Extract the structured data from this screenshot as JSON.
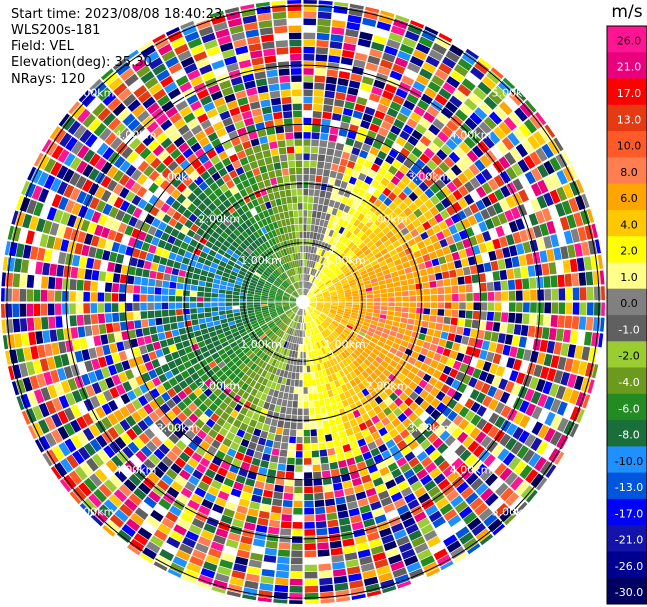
{
  "header": {
    "start_time": "Start time: 2023/08/08 18:40:23",
    "site": "WLS200s-181",
    "field": "Field: VEL",
    "elevation": "Elevation(deg): 35.30",
    "nrays": "NRays: 120"
  },
  "chart_data": {
    "type": "heatmap",
    "subtype": "radar-ppi",
    "field": "VEL",
    "units": "m/s",
    "n_rays": 120,
    "elevation_deg": 35.3,
    "max_range_km": 5.1,
    "range_ring_labels": [
      "1.00km",
      "2.00km",
      "3.00km",
      "4.00km",
      "5.00km"
    ],
    "range_rings_km": [
      1,
      2,
      3,
      4,
      5
    ],
    "spoke_angles_deg": [
      0,
      30,
      60,
      90,
      120,
      150,
      180,
      210,
      240,
      270,
      300,
      330
    ],
    "colorbar": {
      "label": "m/s",
      "ticks": [
        "26.0",
        "21.0",
        "17.0",
        "13.0",
        "10.0",
        "8.0",
        "6.0",
        "4.0",
        "2.0",
        "1.0",
        "0.0",
        "-1.0",
        "-2.0",
        "-4.0",
        "-6.0",
        "-8.0",
        "-10.0",
        "-13.0",
        "-17.0",
        "-21.0",
        "-26.0",
        "-30.0"
      ],
      "colors": [
        "#ff1493",
        "#e8007c",
        "#ff0000",
        "#e53a12",
        "#ff5a28",
        "#ff7f50",
        "#ffa500",
        "#ffc800",
        "#ffff00",
        "#ffff8a",
        "#808080",
        "#606060",
        "#9acd32",
        "#6b9a1e",
        "#228b22",
        "#1a6e3a",
        "#1e90ff",
        "#0055dd",
        "#0000ff",
        "#1414aa",
        "#000090",
        "#000060"
      ]
    },
    "velocity_pattern": {
      "near_range_limit_km": 2.8,
      "positive_sector_center_deg": 100,
      "negative_sector_center_deg": 280,
      "peak_speed_ms": 8
    }
  }
}
